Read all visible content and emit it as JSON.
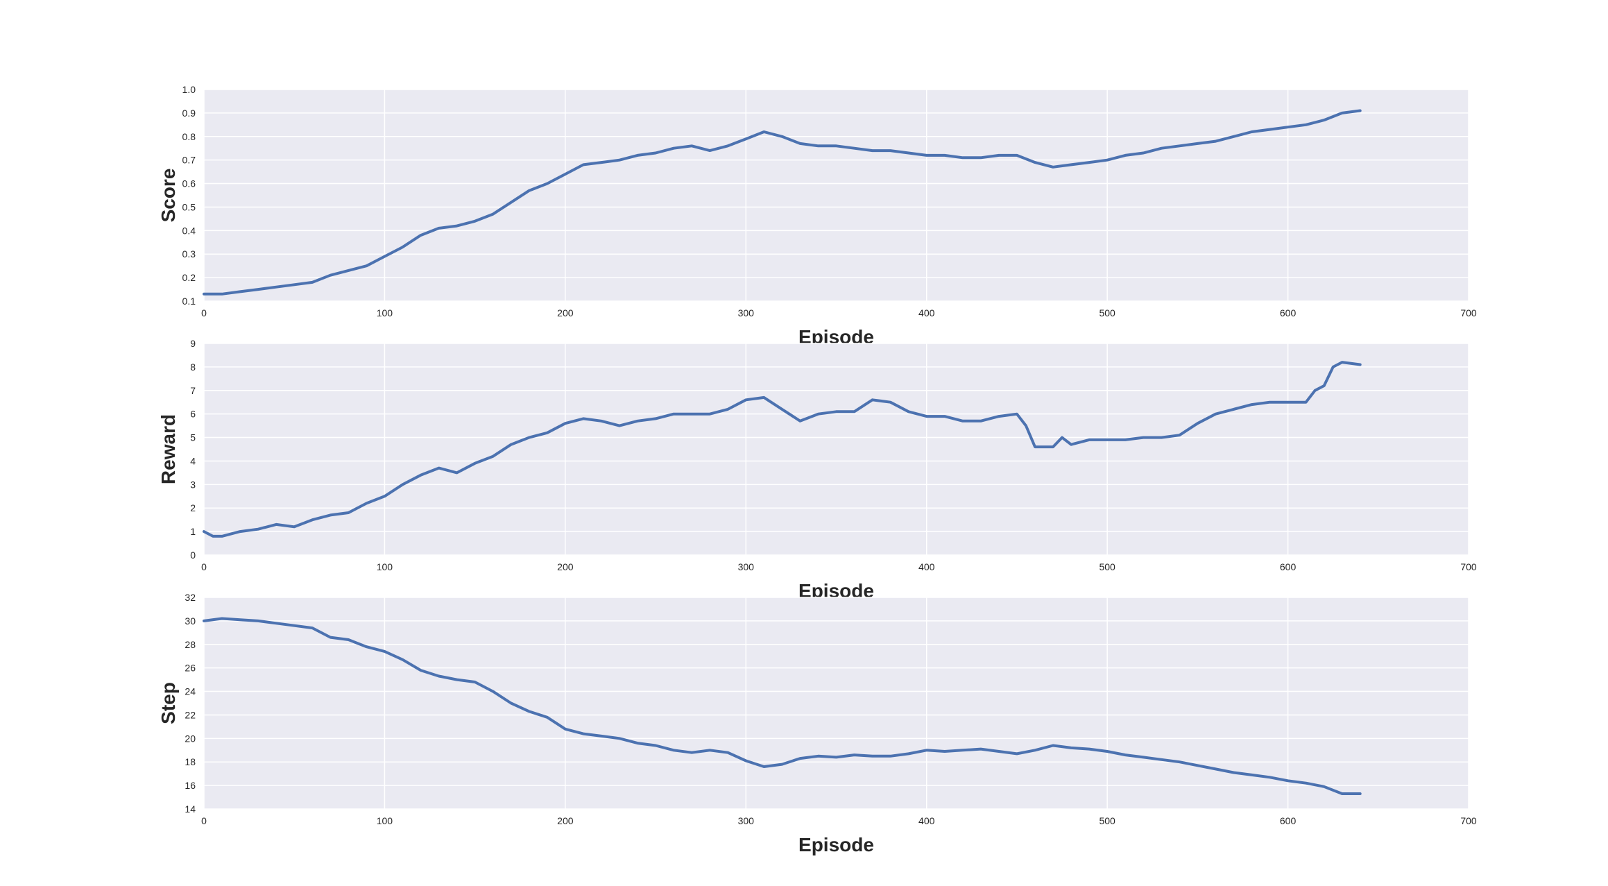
{
  "chart_data": [
    {
      "type": "line",
      "xlabel": "Episode",
      "ylabel": "Score",
      "xlim": [
        0,
        700
      ],
      "ylim": [
        0.1,
        1.0
      ],
      "xticks": [
        "0",
        "100",
        "200",
        "300",
        "400",
        "500",
        "600",
        "700"
      ],
      "yticks": [
        "0.1",
        "0.2",
        "0.3",
        "0.4",
        "0.5",
        "0.6",
        "0.7",
        "0.8",
        "0.9",
        "1.0"
      ],
      "grid": true,
      "line_color": "#4c72b0",
      "background": "#eaeaf2",
      "series": [
        {
          "x": [
            0,
            10,
            20,
            30,
            40,
            50,
            60,
            70,
            80,
            90,
            100,
            110,
            120,
            130,
            140,
            150,
            160,
            170,
            180,
            190,
            200,
            210,
            220,
            230,
            240,
            250,
            260,
            270,
            280,
            290,
            300,
            310,
            320,
            330,
            340,
            350,
            360,
            370,
            380,
            390,
            400,
            410,
            420,
            430,
            440,
            450,
            460,
            470,
            480,
            490,
            500,
            510,
            520,
            530,
            540,
            550,
            560,
            570,
            580,
            590,
            600,
            610,
            620,
            630,
            640
          ],
          "values": [
            0.13,
            0.13,
            0.14,
            0.15,
            0.16,
            0.17,
            0.18,
            0.21,
            0.23,
            0.25,
            0.29,
            0.33,
            0.38,
            0.41,
            0.42,
            0.44,
            0.47,
            0.52,
            0.57,
            0.6,
            0.64,
            0.68,
            0.69,
            0.7,
            0.72,
            0.73,
            0.75,
            0.76,
            0.74,
            0.76,
            0.79,
            0.82,
            0.8,
            0.77,
            0.76,
            0.76,
            0.75,
            0.74,
            0.74,
            0.73,
            0.72,
            0.72,
            0.71,
            0.71,
            0.72,
            0.72,
            0.69,
            0.67,
            0.68,
            0.69,
            0.7,
            0.72,
            0.73,
            0.75,
            0.76,
            0.77,
            0.78,
            0.8,
            0.82,
            0.83,
            0.84,
            0.85,
            0.87,
            0.9,
            0.91
          ]
        }
      ]
    },
    {
      "type": "line",
      "xlabel": "Episode",
      "ylabel": "Reward",
      "xlim": [
        0,
        700
      ],
      "ylim": [
        0,
        9
      ],
      "xticks": [
        "0",
        "100",
        "200",
        "300",
        "400",
        "500",
        "600",
        "700"
      ],
      "yticks": [
        "0",
        "1",
        "2",
        "3",
        "4",
        "5",
        "6",
        "7",
        "8",
        "9"
      ],
      "grid": true,
      "line_color": "#4c72b0",
      "background": "#eaeaf2",
      "series": [
        {
          "x": [
            0,
            5,
            10,
            20,
            30,
            40,
            50,
            60,
            70,
            80,
            90,
            100,
            110,
            120,
            130,
            140,
            150,
            160,
            170,
            180,
            190,
            200,
            210,
            220,
            230,
            240,
            250,
            260,
            270,
            280,
            290,
            300,
            310,
            320,
            330,
            340,
            350,
            360,
            370,
            380,
            390,
            400,
            410,
            420,
            430,
            440,
            450,
            455,
            460,
            470,
            475,
            480,
            490,
            500,
            510,
            520,
            530,
            540,
            550,
            560,
            570,
            580,
            590,
            600,
            610,
            615,
            620,
            625,
            630,
            640
          ],
          "values": [
            1.0,
            0.8,
            0.8,
            1.0,
            1.1,
            1.3,
            1.2,
            1.5,
            1.7,
            1.8,
            2.2,
            2.5,
            3.0,
            3.4,
            3.7,
            3.5,
            3.9,
            4.2,
            4.7,
            5.0,
            5.2,
            5.6,
            5.8,
            5.7,
            5.5,
            5.7,
            5.8,
            6.0,
            6.0,
            6.0,
            6.2,
            6.6,
            6.7,
            6.2,
            5.7,
            6.0,
            6.1,
            6.1,
            6.6,
            6.5,
            6.1,
            5.9,
            5.9,
            5.7,
            5.7,
            5.9,
            6.0,
            5.5,
            4.6,
            4.6,
            5.0,
            4.7,
            4.9,
            4.9,
            4.9,
            5.0,
            5.0,
            5.1,
            5.6,
            6.0,
            6.2,
            6.4,
            6.5,
            6.5,
            6.5,
            7.0,
            7.2,
            8.0,
            8.2,
            8.1
          ]
        }
      ]
    },
    {
      "type": "line",
      "xlabel": "Episode",
      "ylabel": "Step",
      "xlim": [
        0,
        700
      ],
      "ylim": [
        14,
        32
      ],
      "xticks": [
        "0",
        "100",
        "200",
        "300",
        "400",
        "500",
        "600",
        "700"
      ],
      "yticks": [
        "14",
        "16",
        "18",
        "20",
        "22",
        "24",
        "26",
        "28",
        "30",
        "32"
      ],
      "grid": true,
      "line_color": "#4c72b0",
      "background": "#eaeaf2",
      "series": [
        {
          "x": [
            0,
            10,
            20,
            30,
            40,
            50,
            60,
            70,
            80,
            90,
            100,
            110,
            120,
            130,
            140,
            150,
            160,
            170,
            180,
            190,
            200,
            210,
            220,
            230,
            240,
            250,
            260,
            270,
            280,
            290,
            300,
            310,
            320,
            330,
            340,
            350,
            360,
            370,
            380,
            390,
            400,
            410,
            420,
            430,
            440,
            450,
            460,
            470,
            480,
            490,
            500,
            510,
            520,
            530,
            540,
            550,
            560,
            570,
            580,
            590,
            600,
            610,
            620,
            630,
            640
          ],
          "values": [
            30.0,
            30.2,
            30.1,
            30.0,
            29.8,
            29.6,
            29.4,
            28.6,
            28.4,
            27.8,
            27.4,
            26.7,
            25.8,
            25.3,
            25.0,
            24.8,
            24.0,
            23.0,
            22.3,
            21.8,
            20.8,
            20.4,
            20.2,
            20.0,
            19.6,
            19.4,
            19.0,
            18.8,
            19.0,
            18.8,
            18.1,
            17.6,
            17.8,
            18.3,
            18.5,
            18.4,
            18.6,
            18.5,
            18.5,
            18.7,
            19.0,
            18.9,
            19.0,
            19.1,
            18.9,
            18.7,
            19.0,
            19.4,
            19.2,
            19.1,
            18.9,
            18.6,
            18.4,
            18.2,
            18.0,
            17.7,
            17.4,
            17.1,
            16.9,
            16.7,
            16.4,
            16.2,
            15.9,
            15.3,
            15.3
          ]
        }
      ]
    }
  ]
}
